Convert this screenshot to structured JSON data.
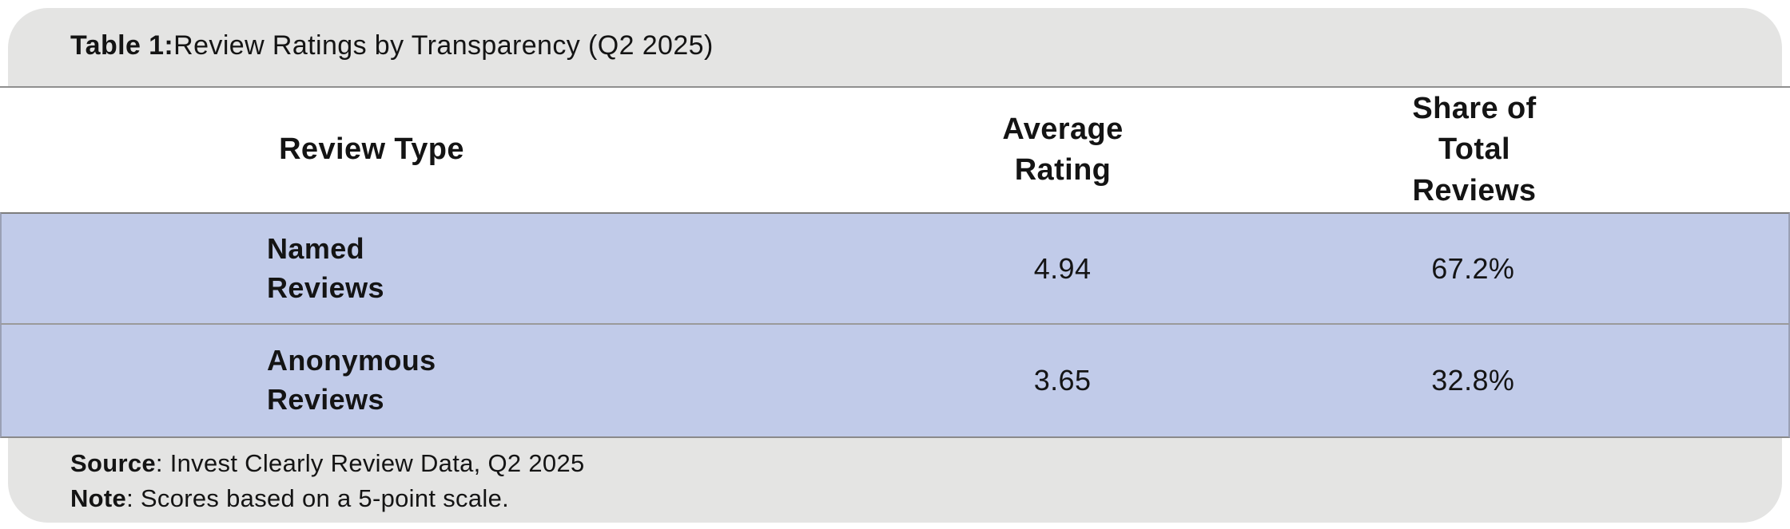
{
  "title": {
    "prefix": "Table 1:",
    "text": " Review Ratings by Transparency (Q2 2025)"
  },
  "table": {
    "headers": [
      "Review Type",
      "Average Rating",
      "Share of Total Reviews"
    ],
    "rows": [
      {
        "label": "Named Reviews",
        "rating": "4.94",
        "share": "67.2%"
      },
      {
        "label": "Anonymous Reviews",
        "rating": "3.65",
        "share": "32.8%"
      }
    ]
  },
  "footer": {
    "source_label": "Source",
    "source_text": ": Invest Clearly Review Data, Q2 2025",
    "note_label": "Note",
    "note_text": ": Scores based on a 5-point scale."
  },
  "colors": {
    "row_blue": "#c1cbe9",
    "card_gray": "#e4e4e3",
    "separator_gray": "#8f8f8f",
    "text": "#141414"
  },
  "chart_data": {
    "type": "table",
    "title": "Table 1: Review Ratings by Transparency (Q2 2025)",
    "columns": [
      "Review Type",
      "Average Rating",
      "Share of Total Reviews"
    ],
    "rows": [
      [
        "Named Reviews",
        4.94,
        "67.2%"
      ],
      [
        "Anonymous Reviews",
        3.65,
        "32.8%"
      ]
    ],
    "source": "Invest Clearly Review Data, Q2 2025",
    "note": "Scores based on a 5-point scale.",
    "rating_scale_max": 5
  }
}
